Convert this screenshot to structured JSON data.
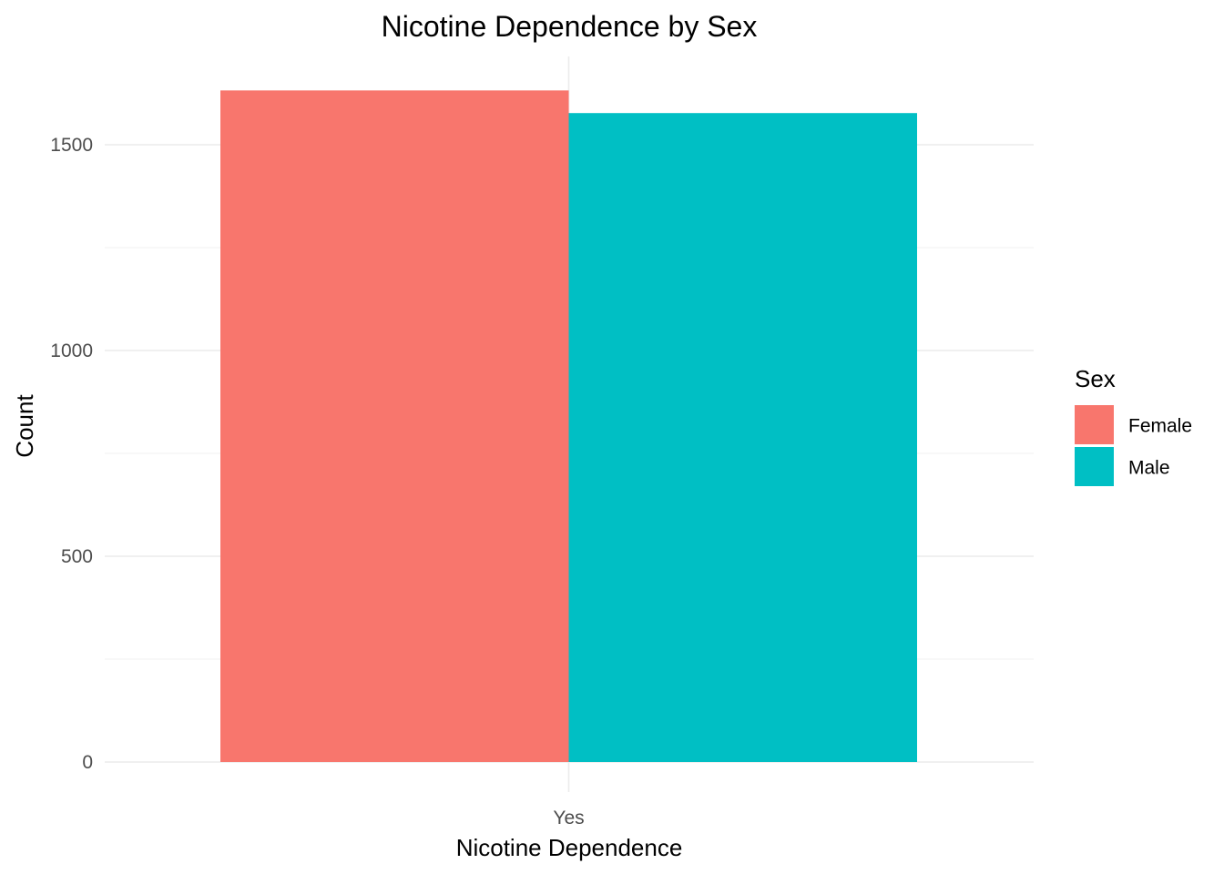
{
  "chart_data": {
    "type": "bar",
    "title": "Nicotine Dependence by Sex",
    "xlabel": "Nicotine Dependence",
    "ylabel": "Count",
    "categories": [
      "Yes"
    ],
    "series": [
      {
        "name": "Female",
        "values": [
          1632
        ],
        "color": "#F8766D"
      },
      {
        "name": "Male",
        "values": [
          1577
        ],
        "color": "#00BFC4"
      }
    ],
    "yticks": [
      0,
      500,
      1000,
      1500
    ],
    "yminor": [
      250,
      750,
      1250
    ],
    "ylim": [
      0,
      1700
    ],
    "grid": true,
    "legend": {
      "title": "Sex",
      "placement": "right",
      "items": [
        "Female",
        "Male"
      ]
    }
  }
}
